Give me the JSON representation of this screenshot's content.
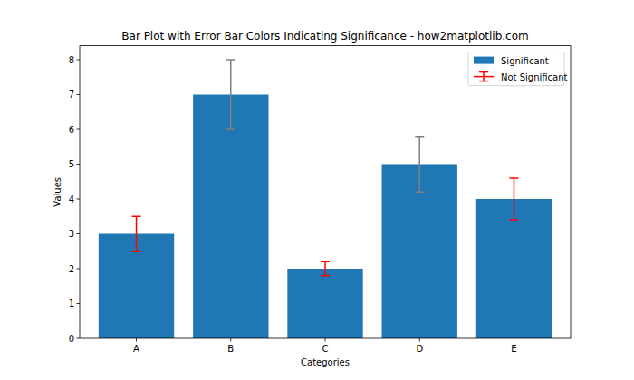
{
  "chart_data": {
    "type": "bar",
    "title": "Bar Plot with Error Bar Colors Indicating Significance - how2matplotlib.com",
    "x_label": "Categories",
    "y_label": "Values",
    "categories": [
      "A",
      "B",
      "C",
      "D",
      "E"
    ],
    "series": [
      {
        "name": "Significant",
        "color": "#1f77b4",
        "values": [
          3,
          7,
          2,
          5,
          4
        ],
        "errors": [
          0.5,
          1,
          0.2,
          0.8,
          0.6
        ],
        "error_colors": [
          "#ff0000",
          "#808080",
          "#ff0000",
          "#808080",
          "#ff0000"
        ]
      }
    ],
    "error_legend": {
      "name": "Not Significant",
      "color": "#ff0000"
    },
    "ylim": [
      0,
      8.4
    ],
    "yticks": [
      0,
      1,
      2,
      3,
      4,
      5,
      6,
      7,
      8
    ],
    "legend": "upper right",
    "grid": false
  }
}
